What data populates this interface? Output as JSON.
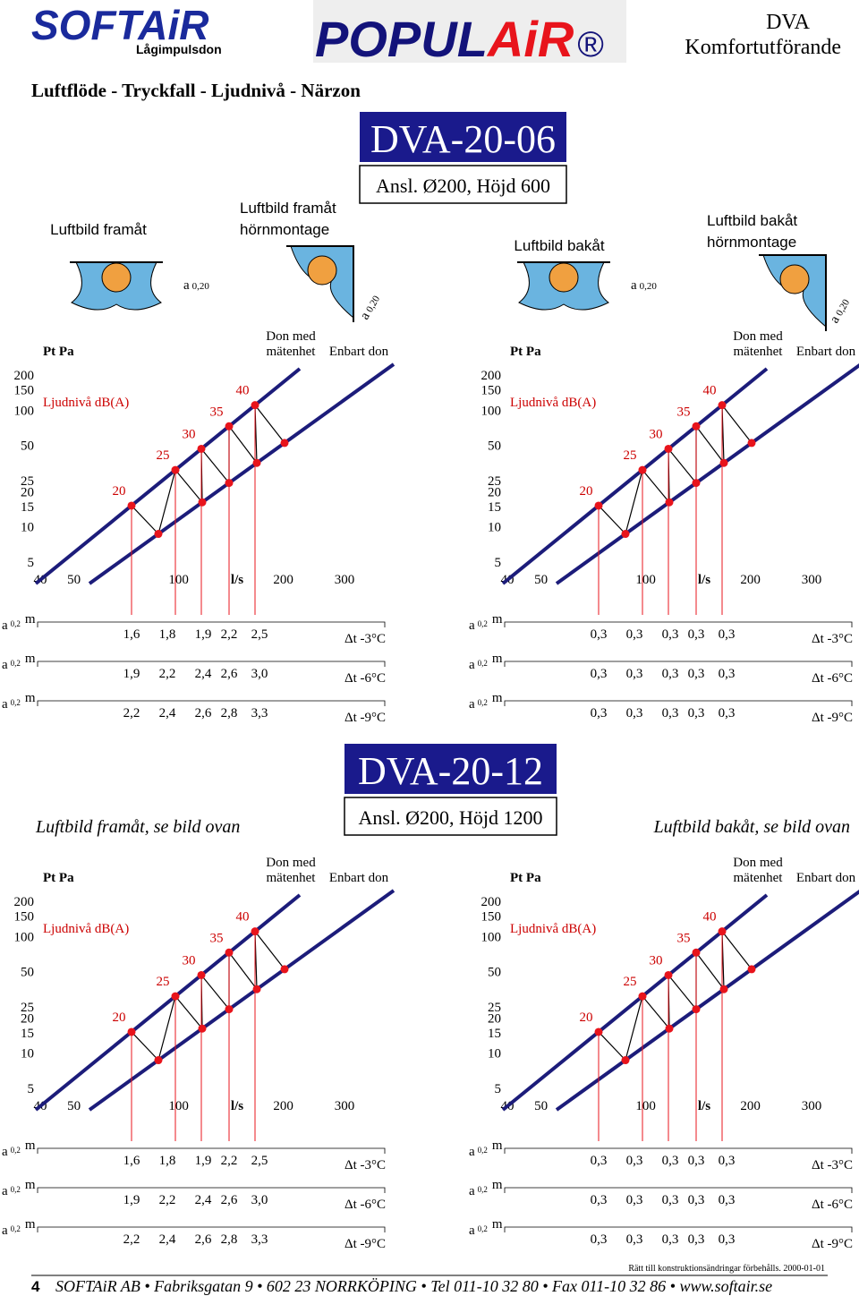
{
  "header": {
    "brand": "SOFTAiR",
    "brand_sub": "Lågimpulsdon",
    "product_a": "POPUL",
    "product_b": "AiR",
    "registered": "®",
    "model": "DVA",
    "variant": "Komfortutförande"
  },
  "subtitle": "Luftflöde - Tryckfall - Ljudnivå - Närzon",
  "sections": [
    {
      "title": "DVA-20-06",
      "connection": "Ansl. Ø200, Höjd 600",
      "images": [
        {
          "caption": [
            "Luftbild framåt"
          ],
          "a": "a",
          "a_sub": "0,20"
        },
        {
          "caption": [
            "Luftbild framåt",
            "hörnmontage"
          ],
          "a": "a",
          "a_sub": "0,20"
        },
        {
          "caption": [
            "Luftbild bakåt"
          ],
          "a": "a",
          "a_sub": "0,20"
        },
        {
          "caption": [
            "Luftbild bakåt",
            "hörnmontage"
          ],
          "a": "a",
          "a_sub": "0,20"
        }
      ],
      "charts": [
        {
          "y_label": "Pt Pa",
          "noise_label": "Ljudnivå dB(A)",
          "legend_1": [
            "Don med",
            "mätenhet"
          ],
          "legend_2": "Enbart don",
          "yticks": [
            200,
            150,
            100,
            50,
            25,
            20,
            15,
            10,
            5
          ],
          "xticks": [
            40,
            50,
            100,
            200,
            300
          ],
          "x_unit": "l/s",
          "noise": [
            20,
            25,
            30,
            35,
            40
          ],
          "table": [
            {
              "a": "a",
              "sub": "0,2",
              "unit": "m",
              "values": [
                "1,6",
                "1,8",
                "1,9",
                "2,2",
                "2,5"
              ],
              "dt": "Δt -3°C"
            },
            {
              "a": "a",
              "sub": "0,2",
              "unit": "m",
              "values": [
                "1,9",
                "2,2",
                "2,4",
                "2,6",
                "3,0"
              ],
              "dt": "Δt -6°C"
            },
            {
              "a": "a",
              "sub": "0,2",
              "unit": "m",
              "values": [
                "2,2",
                "2,4",
                "2,6",
                "2,8",
                "3,3"
              ],
              "dt": "Δt -9°C"
            }
          ]
        },
        {
          "y_label": "Pt Pa",
          "noise_label": "Ljudnivå dB(A)",
          "legend_1": [
            "Don med",
            "mätenhet"
          ],
          "legend_2": "Enbart don",
          "yticks": [
            200,
            150,
            100,
            50,
            25,
            20,
            15,
            10,
            5
          ],
          "xticks": [
            40,
            50,
            100,
            200,
            300
          ],
          "x_unit": "l/s",
          "noise": [
            20,
            25,
            30,
            35,
            40
          ],
          "table": [
            {
              "a": "a",
              "sub": "0,2",
              "unit": "m",
              "values": [
                "0,3",
                "0,3",
                "0,3",
                "0,3",
                "0,3"
              ],
              "dt": "Δt -3°C"
            },
            {
              "a": "a",
              "sub": "0,2",
              "unit": "m",
              "values": [
                "0,3",
                "0,3",
                "0,3",
                "0,3",
                "0,3"
              ],
              "dt": "Δt -6°C"
            },
            {
              "a": "a",
              "sub": "0,2",
              "unit": "m",
              "values": [
                "0,3",
                "0,3",
                "0,3",
                "0,3",
                "0,3"
              ],
              "dt": "Δt -9°C"
            }
          ]
        }
      ]
    },
    {
      "title": "DVA-20-12",
      "connection": "Ansl. Ø200, Höjd 1200",
      "captions": [
        "Luftbild framåt, se bild ovan",
        "Luftbild bakåt, se bild ovan"
      ],
      "charts": [
        {
          "y_label": "Pt Pa",
          "noise_label": "Ljudnivå dB(A)",
          "legend_1": [
            "Don med",
            "mätenhet"
          ],
          "legend_2": "Enbart don",
          "yticks": [
            200,
            150,
            100,
            50,
            25,
            20,
            15,
            10,
            5
          ],
          "xticks": [
            40,
            50,
            100,
            200,
            300
          ],
          "x_unit": "l/s",
          "noise": [
            20,
            25,
            30,
            35,
            40
          ],
          "table": [
            {
              "a": "a",
              "sub": "0,2",
              "unit": "m",
              "values": [
                "1,6",
                "1,8",
                "1,9",
                "2,2",
                "2,5"
              ],
              "dt": "Δt -3°C"
            },
            {
              "a": "a",
              "sub": "0,2",
              "unit": "m",
              "values": [
                "1,9",
                "2,2",
                "2,4",
                "2,6",
                "3,0"
              ],
              "dt": "Δt -6°C"
            },
            {
              "a": "a",
              "sub": "0,2",
              "unit": "m",
              "values": [
                "2,2",
                "2,4",
                "2,6",
                "2,8",
                "3,3"
              ],
              "dt": "Δt -9°C"
            }
          ]
        },
        {
          "y_label": "Pt Pa",
          "noise_label": "Ljudnivå dB(A)",
          "legend_1": [
            "Don med",
            "mätenhet"
          ],
          "legend_2": "Enbart don",
          "yticks": [
            200,
            150,
            100,
            50,
            25,
            20,
            15,
            10,
            5
          ],
          "xticks": [
            40,
            50,
            100,
            200,
            300
          ],
          "x_unit": "l/s",
          "noise": [
            20,
            25,
            30,
            35,
            40
          ],
          "table": [
            {
              "a": "a",
              "sub": "0,2",
              "unit": "m",
              "values": [
                "0,3",
                "0,3",
                "0,3",
                "0,3",
                "0,3"
              ],
              "dt": "Δt -3°C"
            },
            {
              "a": "a",
              "sub": "0,2",
              "unit": "m",
              "values": [
                "0,3",
                "0,3",
                "0,3",
                "0,3",
                "0,3"
              ],
              "dt": "Δt -6°C"
            },
            {
              "a": "a",
              "sub": "0,2",
              "unit": "m",
              "values": [
                "0,3",
                "0,3",
                "0,3",
                "0,3",
                "0,3"
              ],
              "dt": "Δt -9°C"
            }
          ]
        }
      ]
    }
  ],
  "footer": {
    "page": "4",
    "address": "SOFTAiR AB • Fabriksgatan 9 • 602 23 NORRKÖPING • Tel 011-10 32 80 • Fax 011-10 32 86 • www.softair.se",
    "notice": "Rätt till konstruktionsändringar förbehålls. 2000-01-01"
  }
}
